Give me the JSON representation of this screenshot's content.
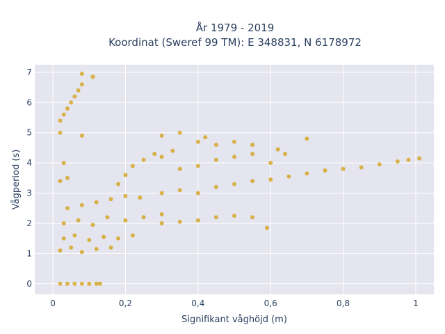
{
  "chart_data": {
    "type": "scatter",
    "title_line1": "År 1979 - 2019",
    "title_line2": "Koordinat (Sweref 99 TM): E 348831, N 6178972",
    "xlabel": "Signifikant våghöjd (m)",
    "ylabel": "Vågperiod (s)",
    "xlim": [
      -0.05,
      1.05
    ],
    "ylim": [
      -0.35,
      7.25
    ],
    "x_ticks": [
      0,
      0.2,
      0.4,
      0.6,
      0.8,
      1
    ],
    "x_tick_labels": [
      "0",
      "0,2",
      "0,4",
      "0,6",
      "0,8",
      "1"
    ],
    "y_ticks": [
      0,
      1,
      2,
      3,
      4,
      5,
      6,
      7
    ],
    "y_tick_labels": [
      "0",
      "1",
      "2",
      "3",
      "4",
      "5",
      "6",
      "7"
    ],
    "grid": true,
    "legend": "none",
    "marker_color": "#d4a21e",
    "plot_bg": "#e5e5ef",
    "series": [
      {
        "values": [
          [
            0.02,
            0
          ],
          [
            0.04,
            0
          ],
          [
            0.06,
            0
          ],
          [
            0.08,
            0
          ],
          [
            0.1,
            0
          ],
          [
            0.12,
            0
          ],
          [
            0.13,
            0
          ],
          [
            0.02,
            1.1
          ],
          [
            0.05,
            1.2
          ],
          [
            0.08,
            1.05
          ],
          [
            0.12,
            1.15
          ],
          [
            0.16,
            1.2
          ],
          [
            0.03,
            1.5
          ],
          [
            0.06,
            1.6
          ],
          [
            0.1,
            1.45
          ],
          [
            0.14,
            1.55
          ],
          [
            0.18,
            1.5
          ],
          [
            0.22,
            1.6
          ],
          [
            0.03,
            2.0
          ],
          [
            0.07,
            2.1
          ],
          [
            0.11,
            1.95
          ],
          [
            0.15,
            2.2
          ],
          [
            0.2,
            2.1
          ],
          [
            0.25,
            2.2
          ],
          [
            0.3,
            2.3
          ],
          [
            0.04,
            2.5
          ],
          [
            0.08,
            2.6
          ],
          [
            0.12,
            2.7
          ],
          [
            0.16,
            2.8
          ],
          [
            0.2,
            2.9
          ],
          [
            0.24,
            2.85
          ],
          [
            0.18,
            3.3
          ],
          [
            0.2,
            3.6
          ],
          [
            0.22,
            3.9
          ],
          [
            0.25,
            4.1
          ],
          [
            0.28,
            4.3
          ],
          [
            0.3,
            4.2
          ],
          [
            0.33,
            4.4
          ],
          [
            0.3,
            3.0
          ],
          [
            0.35,
            3.1
          ],
          [
            0.4,
            3.0
          ],
          [
            0.45,
            3.2
          ],
          [
            0.5,
            3.3
          ],
          [
            0.55,
            3.4
          ],
          [
            0.6,
            3.45
          ],
          [
            0.65,
            3.55
          ],
          [
            0.7,
            3.65
          ],
          [
            0.75,
            3.75
          ],
          [
            0.8,
            3.8
          ],
          [
            0.85,
            3.85
          ],
          [
            0.9,
            3.95
          ],
          [
            0.95,
            4.05
          ],
          [
            0.98,
            4.1
          ],
          [
            1.01,
            4.15
          ],
          [
            0.35,
            3.8
          ],
          [
            0.4,
            3.9
          ],
          [
            0.45,
            4.1
          ],
          [
            0.5,
            4.2
          ],
          [
            0.55,
            4.3
          ],
          [
            0.6,
            4.0
          ],
          [
            0.3,
            2.0
          ],
          [
            0.35,
            2.05
          ],
          [
            0.4,
            2.1
          ],
          [
            0.45,
            2.2
          ],
          [
            0.5,
            2.25
          ],
          [
            0.55,
            2.2
          ],
          [
            0.59,
            1.85
          ],
          [
            0.02,
            5.0
          ],
          [
            0.02,
            5.4
          ],
          [
            0.03,
            5.6
          ],
          [
            0.04,
            5.8
          ],
          [
            0.05,
            6.0
          ],
          [
            0.06,
            6.2
          ],
          [
            0.07,
            6.4
          ],
          [
            0.08,
            6.6
          ],
          [
            0.08,
            6.95
          ],
          [
            0.11,
            6.85
          ],
          [
            0.08,
            4.9
          ],
          [
            0.3,
            4.9
          ],
          [
            0.35,
            5.0
          ],
          [
            0.4,
            4.7
          ],
          [
            0.42,
            4.85
          ],
          [
            0.45,
            4.6
          ],
          [
            0.5,
            4.7
          ],
          [
            0.55,
            4.6
          ],
          [
            0.62,
            4.45
          ],
          [
            0.64,
            4.3
          ],
          [
            0.7,
            4.8
          ],
          [
            0.02,
            3.4
          ],
          [
            0.03,
            4.0
          ],
          [
            0.04,
            3.5
          ]
        ]
      }
    ]
  }
}
